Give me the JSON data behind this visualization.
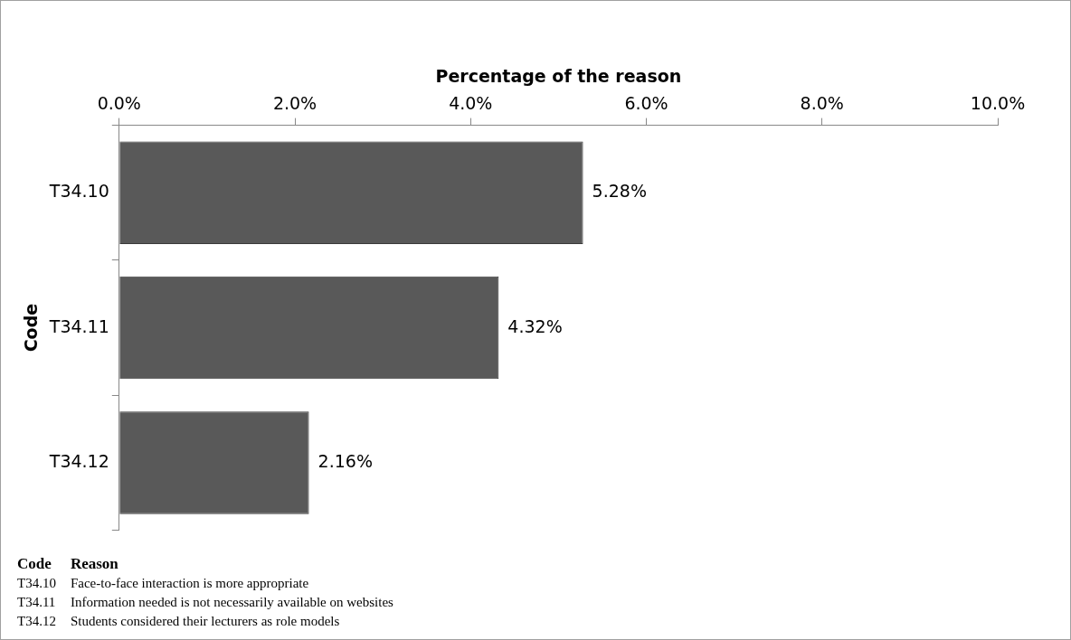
{
  "chart_data": {
    "type": "bar",
    "orientation": "horizontal",
    "xlabel": "Percentage of the reason",
    "ylabel": "Code",
    "categories": [
      "T34.10",
      "T34.11",
      "T34.12"
    ],
    "values": [
      5.28,
      4.32,
      2.16
    ],
    "color": "#595959",
    "value_labels": [
      "5.28%",
      "4.32%",
      "2.16%"
    ],
    "xlim": [
      0,
      10
    ],
    "xticks": [
      {
        "value": 0,
        "label": "0.0%"
      },
      {
        "value": 2,
        "label": "2.0%"
      },
      {
        "value": 4,
        "label": "4.0%"
      },
      {
        "value": 6,
        "label": "6.0%"
      },
      {
        "value": 8,
        "label": "8.0%"
      },
      {
        "value": 10,
        "label": "10.0%"
      }
    ],
    "grid": false,
    "legend": false,
    "annotations": [
      "Code",
      "Reason",
      "T34.10",
      "Face-to-face interaction is more appropriate",
      "T34.11",
      "Information needed is not necessarily available on websites",
      "T34.12",
      "Students considered their lecturers as role models"
    ]
  }
}
